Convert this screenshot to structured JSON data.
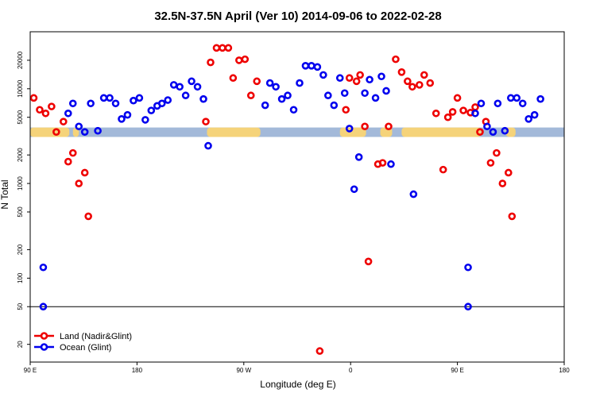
{
  "chart_data": {
    "type": "scatter",
    "title": "32.5N-37.5N April (Ver 10)   2014-09-06 to 2022-02-28",
    "xlabel": "Longitude (deg E)",
    "ylabel": "N Total",
    "y_scale": "log",
    "ylim": [
      13,
      40000
    ],
    "xlim": [
      90,
      540
    ],
    "x_ticks": [
      {
        "value": 90,
        "label": "90 E"
      },
      {
        "value": 180,
        "label": "180"
      },
      {
        "value": 270,
        "label": "90 W"
      },
      {
        "value": 360,
        "label": "0"
      },
      {
        "value": 450,
        "label": "90 E"
      },
      {
        "value": 540,
        "label": "180"
      }
    ],
    "y_ticks": [
      {
        "value": 20,
        "label": "20"
      },
      {
        "value": 50,
        "label": "50"
      },
      {
        "value": 100,
        "label": "100"
      },
      {
        "value": 200,
        "label": "200"
      },
      {
        "value": 500,
        "label": "500"
      },
      {
        "value": 1000,
        "label": "1000"
      },
      {
        "value": 2000,
        "label": "2000"
      },
      {
        "value": 5000,
        "label": "5000"
      },
      {
        "value": 10000,
        "label": "10000"
      },
      {
        "value": 20000,
        "label": "20000"
      }
    ],
    "reference_line": 50,
    "legend": {
      "placement": "bottom-left",
      "entries": [
        {
          "label": "Land (Nadir&Glint)",
          "color": "#ee0000"
        },
        {
          "label": "Ocean (Glint)",
          "color": "#0000ee"
        }
      ]
    },
    "map_band": {
      "y_range": [
        3100,
        3900
      ],
      "ocean_color": "#a3b9d9",
      "land_color": "#f5d37a",
      "land_segments": [
        [
          90,
          123
        ],
        [
          126,
          131
        ],
        [
          239,
          284
        ],
        [
          351,
          373
        ],
        [
          385,
          395
        ],
        [
          403,
          470
        ],
        [
          491,
          499
        ]
      ]
    },
    "series": [
      {
        "name": "Land (Nadir&Glint)",
        "color": "#ee0000",
        "points": [
          [
            93,
            8000
          ],
          [
            98,
            6000
          ],
          [
            103,
            5500
          ],
          [
            108,
            6500
          ],
          [
            112,
            3500
          ],
          [
            118,
            4500
          ],
          [
            122,
            1700
          ],
          [
            126,
            2100
          ],
          [
            131,
            1000
          ],
          [
            136,
            1300
          ],
          [
            139,
            450
          ],
          [
            238,
            4500
          ],
          [
            242,
            19000
          ],
          [
            247,
            27000
          ],
          [
            252,
            27000
          ],
          [
            257,
            27000
          ],
          [
            261,
            13000
          ],
          [
            266,
            20000
          ],
          [
            271,
            20500
          ],
          [
            276,
            8500
          ],
          [
            281,
            12000
          ],
          [
            334,
            17
          ],
          [
            356,
            6000
          ],
          [
            359,
            13000
          ],
          [
            365,
            12000
          ],
          [
            368,
            14000
          ],
          [
            372,
            4000
          ],
          [
            375,
            150
          ],
          [
            383,
            1600
          ],
          [
            387,
            1650
          ],
          [
            392,
            4000
          ],
          [
            398,
            20500
          ],
          [
            403,
            15000
          ],
          [
            408,
            12000
          ],
          [
            412,
            10500
          ],
          [
            418,
            11000
          ],
          [
            422,
            14000
          ],
          [
            427,
            11500
          ],
          [
            432,
            5500
          ],
          [
            438,
            1400
          ],
          [
            442,
            5000
          ],
          [
            446,
            5700
          ],
          [
            450,
            8000
          ],
          [
            455,
            5900
          ],
          [
            461,
            5600
          ],
          [
            465,
            6400
          ],
          [
            469,
            3500
          ],
          [
            474,
            4500
          ],
          [
            478,
            1650
          ],
          [
            483,
            2100
          ],
          [
            488,
            1000
          ],
          [
            493,
            1300
          ],
          [
            496,
            450
          ]
        ]
      },
      {
        "name": "Ocean (Glint)",
        "color": "#0000ee",
        "points": [
          [
            101,
            130
          ],
          [
            101,
            50
          ],
          [
            122,
            5500
          ],
          [
            126,
            7000
          ],
          [
            131,
            4000
          ],
          [
            136,
            3500
          ],
          [
            141,
            7000
          ],
          [
            147,
            3600
          ],
          [
            152,
            8000
          ],
          [
            157,
            8000
          ],
          [
            162,
            7000
          ],
          [
            167,
            4800
          ],
          [
            172,
            5300
          ],
          [
            177,
            7500
          ],
          [
            182,
            8000
          ],
          [
            187,
            4700
          ],
          [
            192,
            5900
          ],
          [
            197,
            6600
          ],
          [
            201,
            7000
          ],
          [
            206,
            7600
          ],
          [
            211,
            11000
          ],
          [
            216,
            10500
          ],
          [
            221,
            8500
          ],
          [
            226,
            12000
          ],
          [
            231,
            10500
          ],
          [
            236,
            7800
          ],
          [
            240,
            2500
          ],
          [
            288,
            6700
          ],
          [
            292,
            11500
          ],
          [
            297,
            10500
          ],
          [
            302,
            7800
          ],
          [
            307,
            8500
          ],
          [
            312,
            6000
          ],
          [
            317,
            11500
          ],
          [
            322,
            17500
          ],
          [
            327,
            17500
          ],
          [
            332,
            17000
          ],
          [
            337,
            14000
          ],
          [
            341,
            8500
          ],
          [
            346,
            6700
          ],
          [
            351,
            13000
          ],
          [
            355,
            9000
          ],
          [
            359,
            3800
          ],
          [
            363,
            870
          ],
          [
            367,
            1900
          ],
          [
            372,
            9000
          ],
          [
            376,
            12500
          ],
          [
            381,
            8000
          ],
          [
            386,
            13500
          ],
          [
            390,
            9500
          ],
          [
            394,
            1600
          ],
          [
            413,
            770
          ],
          [
            459,
            130
          ],
          [
            459,
            50
          ],
          [
            465,
            5500
          ],
          [
            470,
            7000
          ],
          [
            475,
            4000
          ],
          [
            480,
            3500
          ],
          [
            484,
            7000
          ],
          [
            490,
            3600
          ],
          [
            495,
            8000
          ],
          [
            500,
            8000
          ],
          [
            505,
            7000
          ],
          [
            510,
            4800
          ],
          [
            515,
            5300
          ],
          [
            520,
            7800
          ]
        ]
      }
    ]
  }
}
